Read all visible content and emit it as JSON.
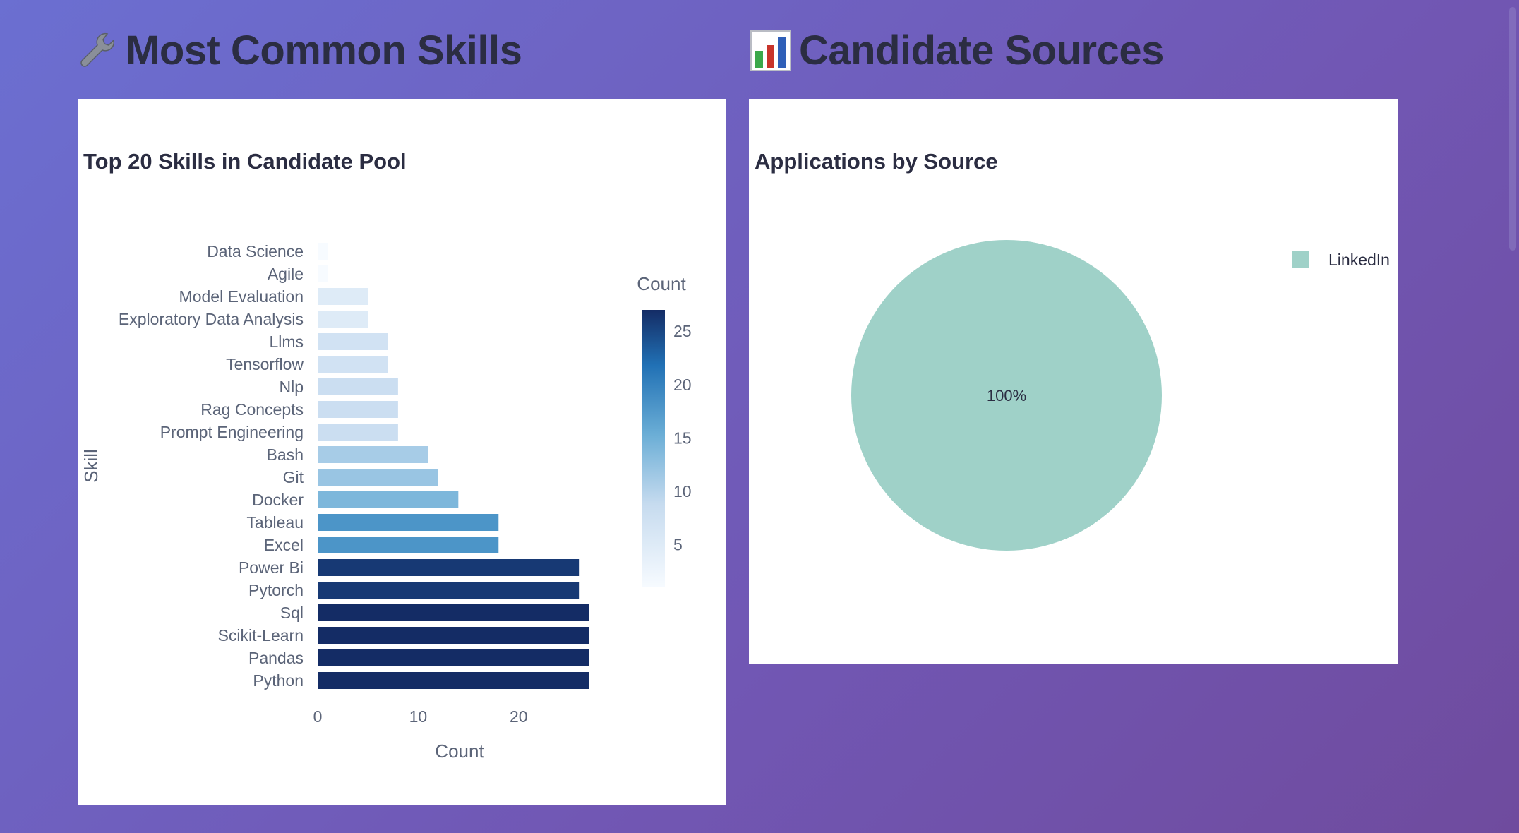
{
  "sections": {
    "skills_title": "Most Common Skills",
    "sources_title": "Candidate Sources"
  },
  "chart_data": [
    {
      "type": "bar",
      "orientation": "horizontal",
      "title": "Top 20 Skills in Candidate Pool",
      "xlabel": "Count",
      "ylabel": "Skill",
      "xlim": [
        0,
        27
      ],
      "x_ticks": [
        0,
        10,
        20
      ],
      "categories": [
        "Data Science",
        "Agile",
        "Model Evaluation",
        "Exploratory Data Analysis",
        "Llms",
        "Tensorflow",
        "Nlp",
        "Rag Concepts",
        "Prompt Engineering",
        "Bash",
        "Git",
        "Docker",
        "Tableau",
        "Excel",
        "Power Bi",
        "Pytorch",
        "Sql",
        "Scikit-Learn",
        "Pandas",
        "Python"
      ],
      "values": [
        1,
        1,
        5,
        5,
        7,
        7,
        8,
        8,
        8,
        11,
        12,
        14,
        18,
        18,
        26,
        26,
        27,
        27,
        27,
        27
      ],
      "colorscale": "Blues",
      "colorbar": {
        "title": "Count",
        "range": [
          1,
          27
        ],
        "ticks": [
          5,
          10,
          15,
          20,
          25
        ]
      },
      "grid": false
    },
    {
      "type": "pie",
      "title": "Applications by Source",
      "labels": [
        "LinkedIn"
      ],
      "values": [
        100
      ],
      "text": [
        "100%"
      ],
      "colors": [
        "#9fd1c8"
      ],
      "legend_position": "top-right"
    }
  ]
}
